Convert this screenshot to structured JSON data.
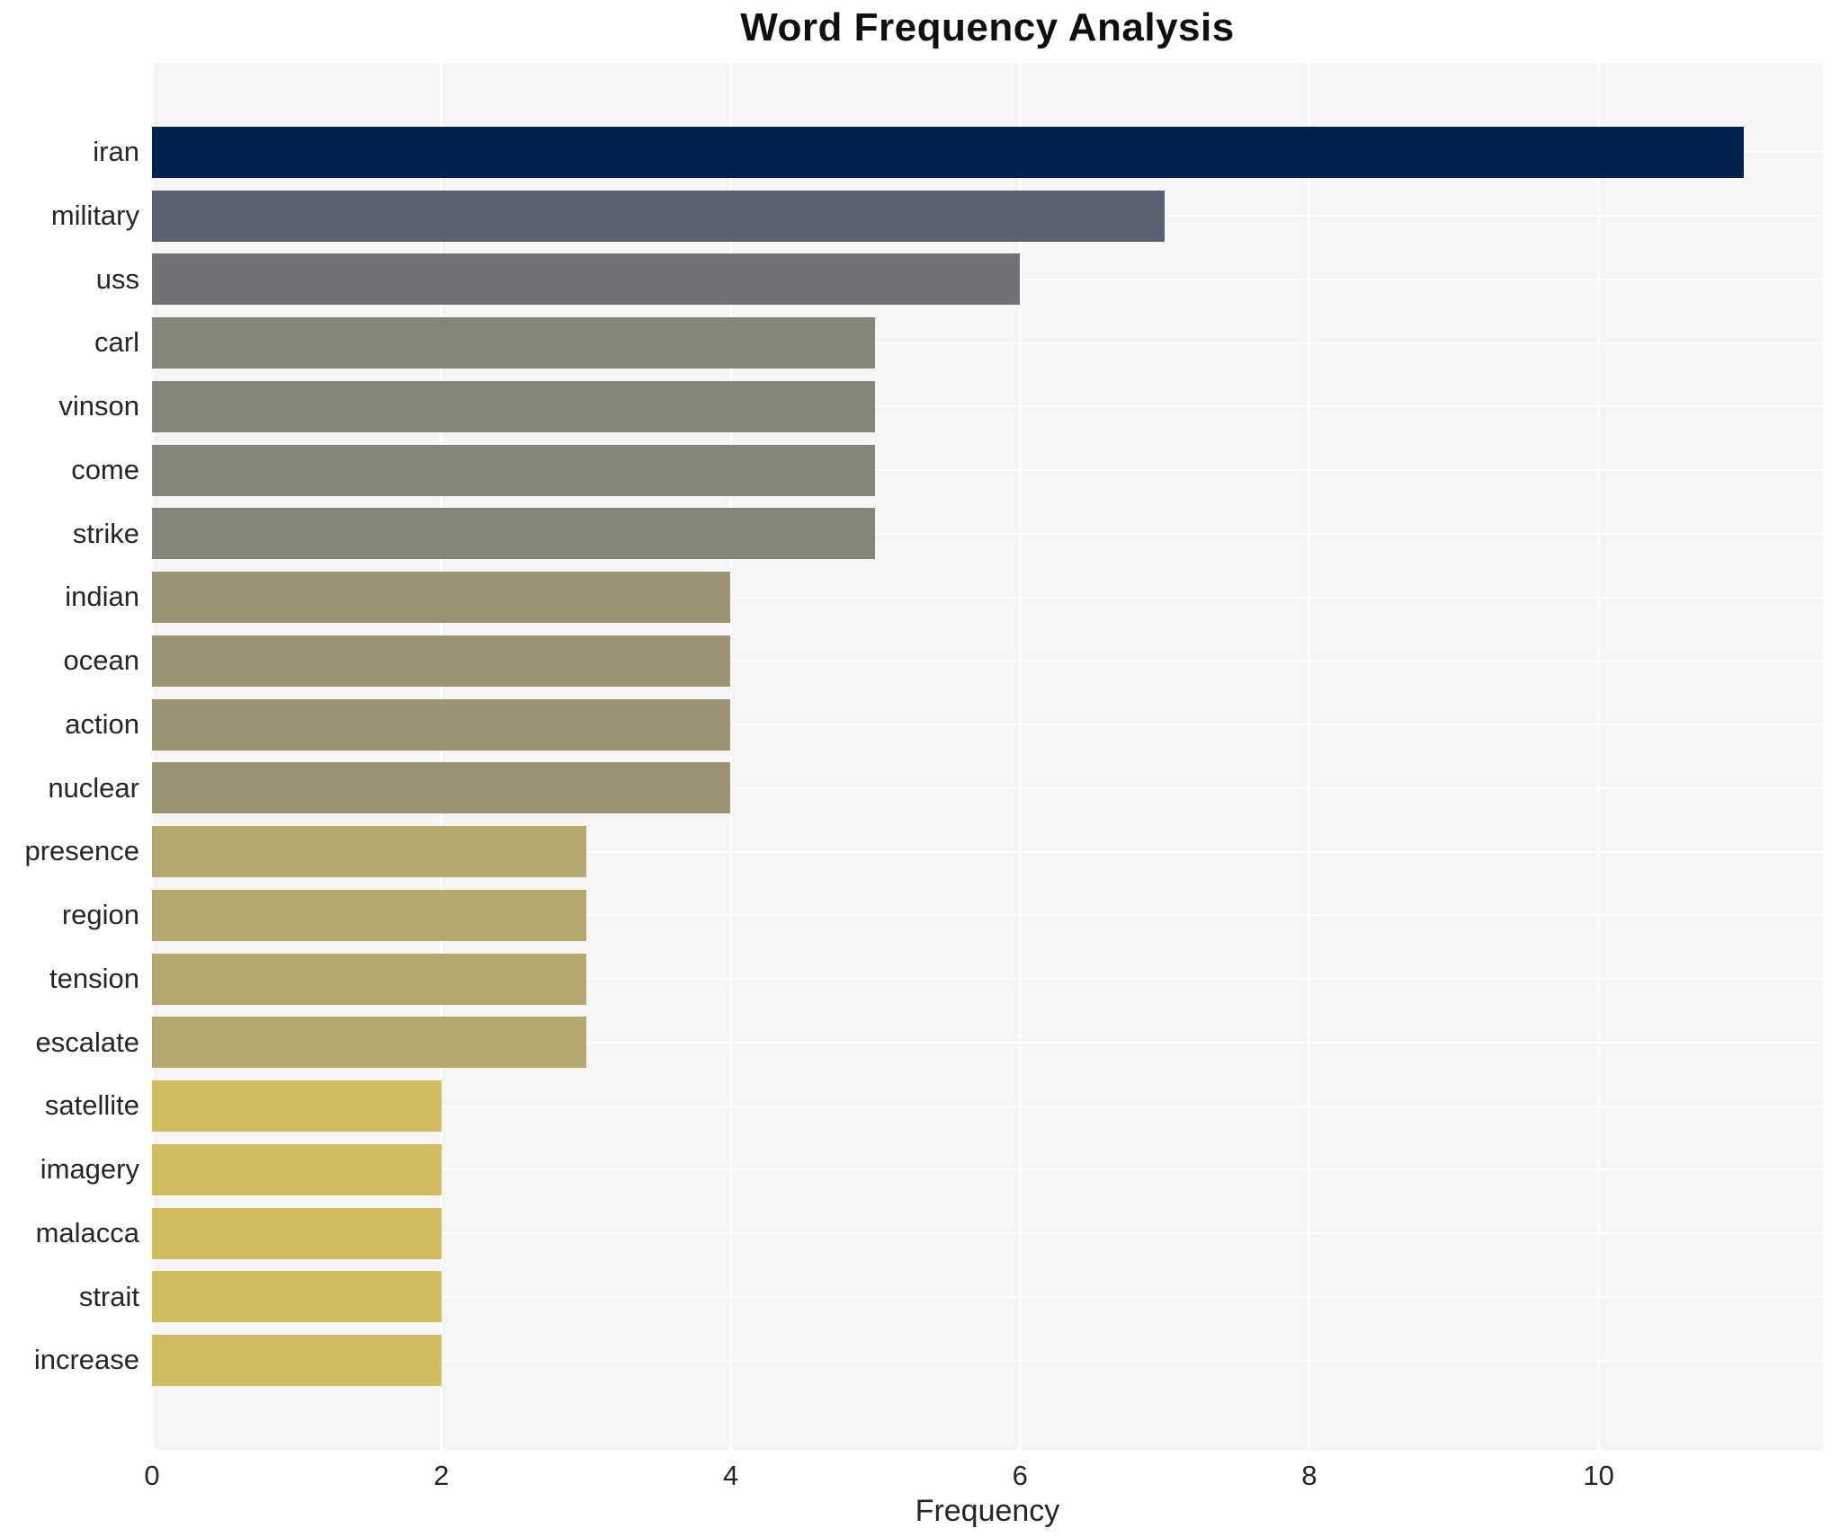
{
  "chart_data": {
    "type": "bar",
    "orientation": "horizontal",
    "title": "Word Frequency Analysis",
    "xlabel": "Frequency",
    "ylabel": "",
    "xlim": [
      0,
      11.55
    ],
    "xticks": [
      0,
      2,
      4,
      6,
      8,
      10
    ],
    "grid": "on",
    "legend": "none",
    "categories": [
      "iran",
      "military",
      "uss",
      "carl",
      "vinson",
      "come",
      "strike",
      "indian",
      "ocean",
      "action",
      "nuclear",
      "presence",
      "region",
      "tension",
      "escalate",
      "satellite",
      "imagery",
      "malacca",
      "strait",
      "increase"
    ],
    "values": [
      11,
      7,
      6,
      5,
      5,
      5,
      5,
      4,
      4,
      4,
      4,
      3,
      3,
      3,
      3,
      2,
      2,
      2,
      2,
      2
    ],
    "bar_colors": [
      "#00224e",
      "#5c6170",
      "#717275",
      "#858478",
      "#858478",
      "#858478",
      "#858478",
      "#9c9372",
      "#9c9372",
      "#9c9372",
      "#9c9372",
      "#b3a86e",
      "#b3a86e",
      "#b3a86e",
      "#b3a86e",
      "#d0bd62",
      "#d0bd62",
      "#d0bd62",
      "#d0bd62",
      "#d0bd62"
    ],
    "colors": {
      "plot_background": "#f6f5f4",
      "figure_background": "#ffffff",
      "gridline": "#ffffff",
      "title_text": "#0f0f0f",
      "tick_text": "#262626"
    }
  }
}
